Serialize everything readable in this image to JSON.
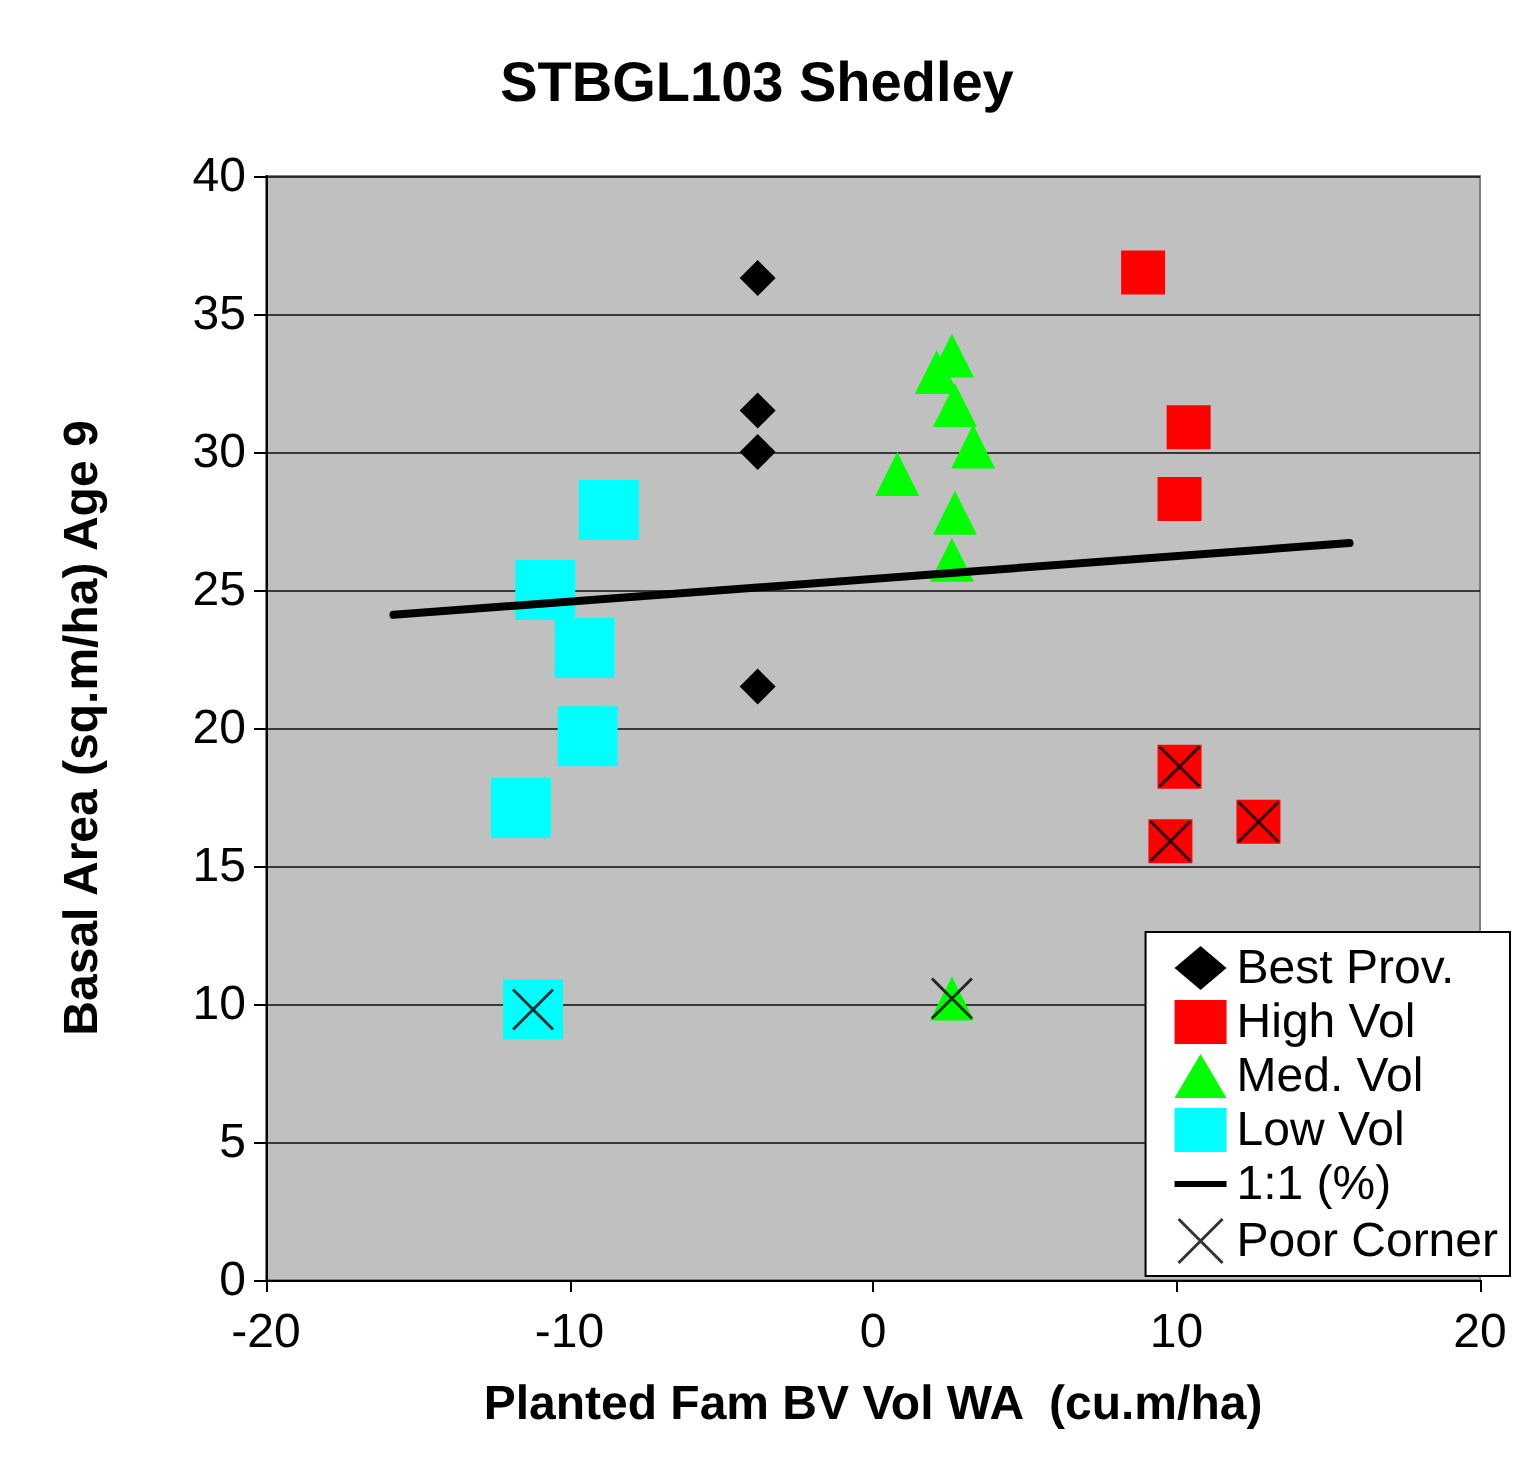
{
  "chart_data": {
    "type": "scatter",
    "title": "STBGL103 Shedley",
    "xlabel": "Planted Fam BV Vol WA  (cu.m/ha)",
    "ylabel": "Basal Area (sq.m/ha) Age 9",
    "xlim": [
      -20,
      20
    ],
    "xticks": [
      -20,
      -10,
      0,
      10,
      20
    ],
    "ylim": [
      0,
      40
    ],
    "yticks": [
      0,
      5,
      10,
      15,
      20,
      25,
      30,
      35,
      40
    ],
    "grid": "y",
    "legend": "bottom right",
    "series": [
      {
        "name": "Best Prov.",
        "marker": "diamond",
        "color": "#000000",
        "x": [
          -3.8,
          -3.8,
          -3.8,
          -3.8
        ],
        "values": [
          36.3,
          31.5,
          30.0,
          21.5
        ]
      },
      {
        "name": "High Vol",
        "marker": "square",
        "color": "#ff0000",
        "x": [
          8.9,
          10.4,
          10.1,
          10.1,
          9.8,
          12.7
        ],
        "values": [
          36.5,
          30.9,
          28.3,
          18.6,
          15.9,
          16.6
        ]
      },
      {
        "name": "Med. Vol",
        "marker": "triangle",
        "color": "#00ff00",
        "x": [
          0.8,
          2.1,
          2.6,
          2.7,
          3.3,
          2.7,
          2.6,
          2.6
        ],
        "values": [
          29.2,
          32.9,
          33.5,
          31.7,
          30.2,
          27.8,
          26.1,
          10.2
        ]
      },
      {
        "name": "Low Vol",
        "marker": "square",
        "color": "#00ffff",
        "x": [
          -8.7,
          -10.8,
          -9.5,
          -9.4,
          -11.6,
          -11.2
        ],
        "values": [
          27.9,
          25.0,
          22.9,
          19.7,
          17.1,
          9.8
        ]
      },
      {
        "name": "1:1 (%)",
        "type": "line",
        "marker": "none",
        "color": "#000000",
        "x": [
          -15.8,
          15.7
        ],
        "values": [
          24.1,
          26.7
        ]
      },
      {
        "name": "Poor Corner",
        "marker": "cross",
        "color": "#000000",
        "x": [
          -11.2,
          2.6,
          10.1,
          9.8,
          12.7
        ],
        "values": [
          9.8,
          10.2,
          18.6,
          15.9,
          16.6
        ]
      }
    ]
  }
}
